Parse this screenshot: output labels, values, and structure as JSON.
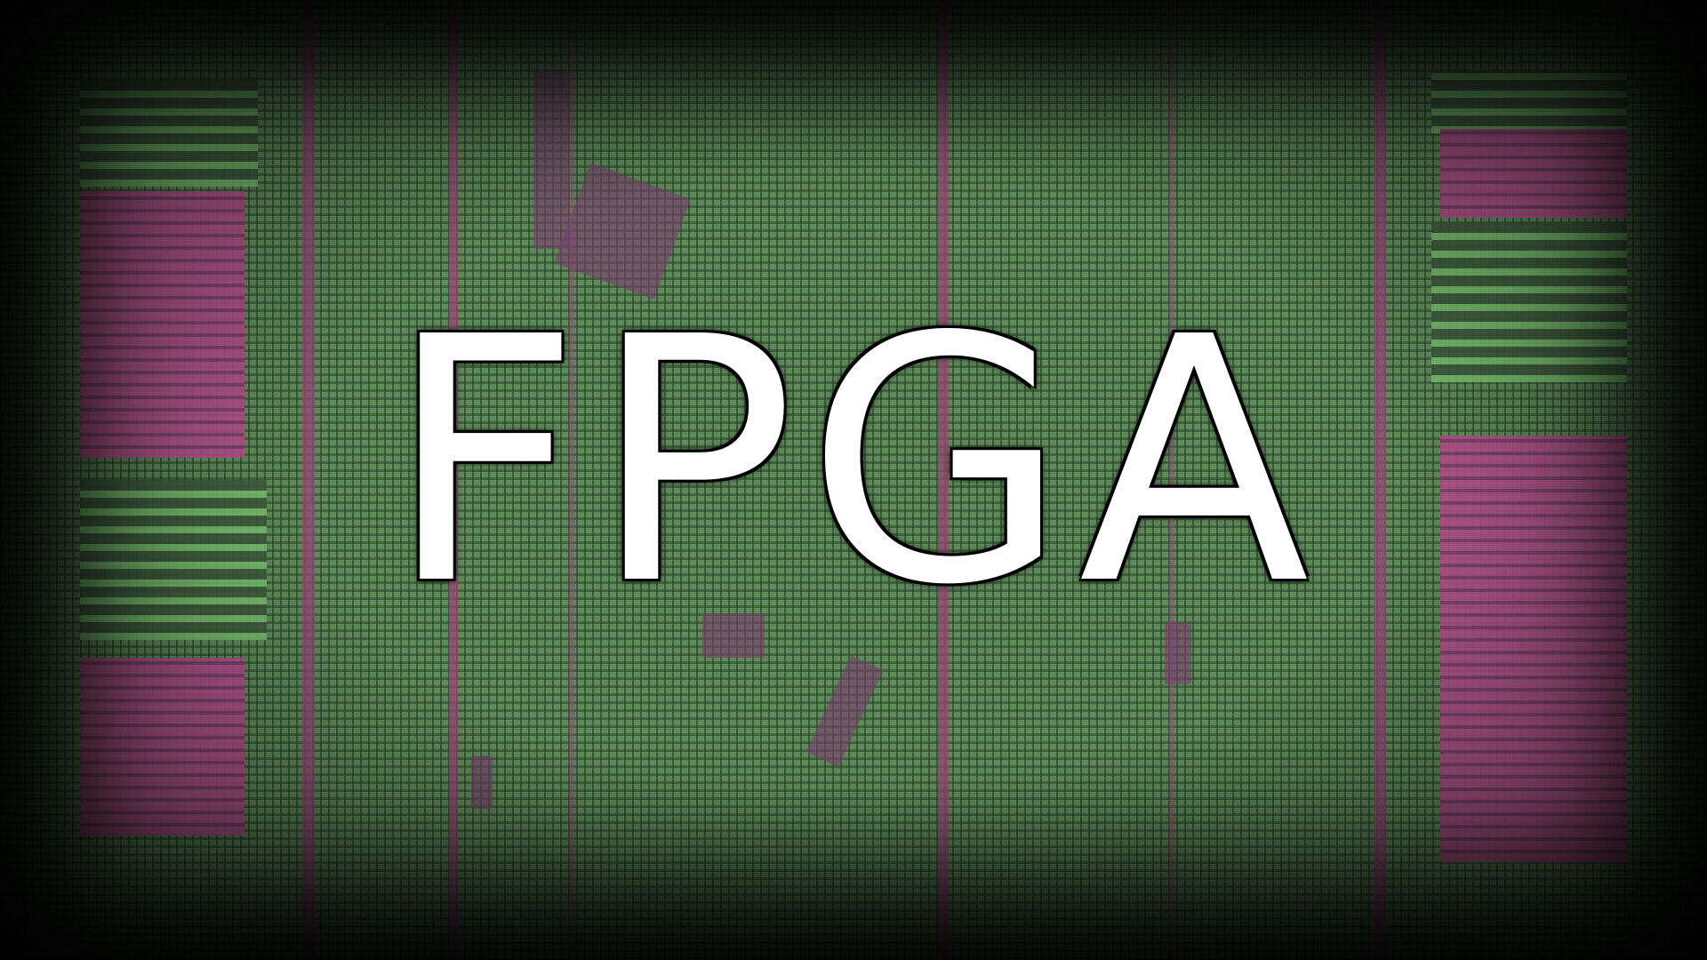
{
  "title": "FPGA",
  "colors": {
    "fabric_green": "#5f8a5a",
    "stripe_magenta": "#96467a",
    "text": "#ffffff",
    "vignette": "#000000"
  }
}
